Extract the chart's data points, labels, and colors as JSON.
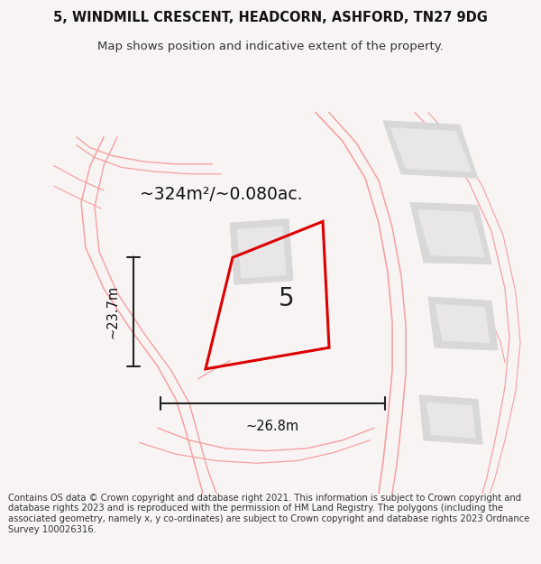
{
  "title": "5, WINDMILL CRESCENT, HEADCORN, ASHFORD, TN27 9DG",
  "subtitle": "Map shows position and indicative extent of the property.",
  "footer": "Contains OS data © Crown copyright and database right 2021. This information is subject to Crown copyright and database rights 2023 and is reproduced with the permission of HM Land Registry. The polygons (including the associated geometry, namely x, y co-ordinates) are subject to Crown copyright and database rights 2023 Ordnance Survey 100026316.",
  "area_label": "~324m²/~0.080ac.",
  "plot_number": "5",
  "width_label": "~26.8m",
  "height_label": "~23.7m",
  "title_fontsize": 10.5,
  "subtitle_fontsize": 9.5,
  "footer_fontsize": 7.2,
  "pink": "#f5a0a0",
  "grey_outer": "#d8d8d8",
  "grey_inner": "#e8e6e6",
  "red": "#dd0000",
  "map_bg": "#ffffff",
  "fig_bg": "#f8f4f4"
}
